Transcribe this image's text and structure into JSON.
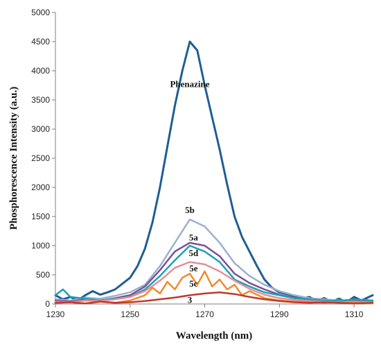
{
  "chart_data": {
    "type": "line",
    "title": "",
    "xlabel": "Wavelength (nm)",
    "ylabel": "Phosphorescence Intensity (a.u.)",
    "xlim": [
      1230,
      1315
    ],
    "ylim": [
      0,
      5000
    ],
    "xticks": [
      1230,
      1250,
      1270,
      1290,
      1310
    ],
    "yticks": [
      0,
      500,
      1000,
      1500,
      2000,
      2500,
      3000,
      3500,
      4000,
      4500,
      5000
    ],
    "grid": false,
    "legend": "none",
    "series": [
      {
        "name": "Phenazine",
        "color": "#1f5e91",
        "label_at": [
          1266,
          3720
        ],
        "x": [
          1230,
          1232,
          1234,
          1236,
          1238,
          1240,
          1242,
          1244,
          1246,
          1248,
          1250,
          1252,
          1254,
          1256,
          1258,
          1260,
          1262,
          1264,
          1266,
          1268,
          1270,
          1272,
          1274,
          1276,
          1278,
          1280,
          1282,
          1284,
          1286,
          1288,
          1290,
          1292,
          1294,
          1296,
          1298,
          1300,
          1302,
          1304,
          1306,
          1308,
          1310,
          1312,
          1315
        ],
        "y": [
          150,
          80,
          120,
          60,
          150,
          220,
          160,
          200,
          250,
          350,
          450,
          650,
          950,
          1400,
          2000,
          2700,
          3400,
          4000,
          4500,
          4350,
          3750,
          3200,
          2650,
          2050,
          1500,
          1150,
          900,
          650,
          420,
          280,
          200,
          170,
          140,
          90,
          120,
          60,
          100,
          40,
          90,
          30,
          120,
          60,
          150
        ]
      },
      {
        "name": "5b",
        "color": "#9ab0d0",
        "label_at": [
          1266,
          1560
        ],
        "x": [
          1230,
          1234,
          1238,
          1242,
          1246,
          1250,
          1254,
          1258,
          1262,
          1266,
          1270,
          1274,
          1278,
          1282,
          1286,
          1290,
          1294,
          1298,
          1302,
          1306,
          1310,
          1315
        ],
        "y": [
          80,
          60,
          110,
          90,
          140,
          200,
          330,
          650,
          1050,
          1450,
          1330,
          1050,
          700,
          480,
          330,
          220,
          150,
          100,
          80,
          60,
          70,
          60
        ]
      },
      {
        "name": "5a",
        "color": "#7b4e9a",
        "label_at": [
          1267,
          1090
        ],
        "x": [
          1230,
          1234,
          1238,
          1242,
          1246,
          1250,
          1254,
          1258,
          1262,
          1266,
          1270,
          1274,
          1278,
          1282,
          1286,
          1290,
          1294,
          1298,
          1302,
          1306,
          1310,
          1315
        ],
        "y": [
          60,
          40,
          80,
          60,
          100,
          150,
          300,
          580,
          900,
          1050,
          1000,
          820,
          520,
          360,
          250,
          160,
          110,
          80,
          60,
          50,
          60,
          40
        ]
      },
      {
        "name": "5d",
        "color": "#1ba0b3",
        "label_at": [
          1267,
          820
        ],
        "x": [
          1230,
          1232,
          1234,
          1238,
          1242,
          1246,
          1250,
          1254,
          1258,
          1262,
          1266,
          1270,
          1274,
          1278,
          1282,
          1286,
          1290,
          1294,
          1298,
          1302,
          1306,
          1310,
          1315
        ],
        "y": [
          150,
          250,
          120,
          90,
          60,
          90,
          120,
          250,
          480,
          750,
          1000,
          900,
          720,
          420,
          300,
          200,
          150,
          100,
          80,
          60,
          50,
          80,
          60
        ]
      },
      {
        "name": "5e",
        "color": "#e58e96",
        "label_at": [
          1267,
          560
        ],
        "x": [
          1230,
          1234,
          1238,
          1242,
          1246,
          1250,
          1254,
          1258,
          1262,
          1266,
          1270,
          1274,
          1278,
          1282,
          1286,
          1290,
          1294,
          1298,
          1302,
          1306,
          1310,
          1315
        ],
        "y": [
          40,
          30,
          60,
          50,
          80,
          120,
          220,
          400,
          620,
          720,
          680,
          560,
          400,
          260,
          160,
          100,
          70,
          50,
          40,
          30,
          40,
          30
        ]
      },
      {
        "name": "5c",
        "color": "#f08b2a",
        "label_at": [
          1267,
          300
        ],
        "x": [
          1230,
          1234,
          1238,
          1242,
          1246,
          1250,
          1254,
          1256,
          1258,
          1260,
          1262,
          1264,
          1266,
          1268,
          1270,
          1272,
          1274,
          1276,
          1278,
          1280,
          1282,
          1286,
          1290,
          1294,
          1298,
          1302,
          1306,
          1310,
          1315
        ],
        "y": [
          20,
          30,
          10,
          40,
          20,
          60,
          150,
          280,
          180,
          380,
          250,
          450,
          520,
          330,
          560,
          300,
          420,
          250,
          330,
          150,
          220,
          100,
          60,
          40,
          30,
          20,
          30,
          20,
          10
        ]
      },
      {
        "name": "3",
        "color": "#c0392b",
        "label_at": [
          1266,
          20
        ],
        "x": [
          1230,
          1234,
          1238,
          1242,
          1246,
          1250,
          1254,
          1258,
          1262,
          1266,
          1270,
          1274,
          1278,
          1282,
          1286,
          1290,
          1294,
          1298,
          1302,
          1306,
          1310,
          1315
        ],
        "y": [
          20,
          30,
          10,
          40,
          20,
          30,
          50,
          80,
          110,
          150,
          180,
          200,
          170,
          120,
          80,
          50,
          30,
          20,
          30,
          20,
          10,
          20
        ]
      }
    ]
  }
}
